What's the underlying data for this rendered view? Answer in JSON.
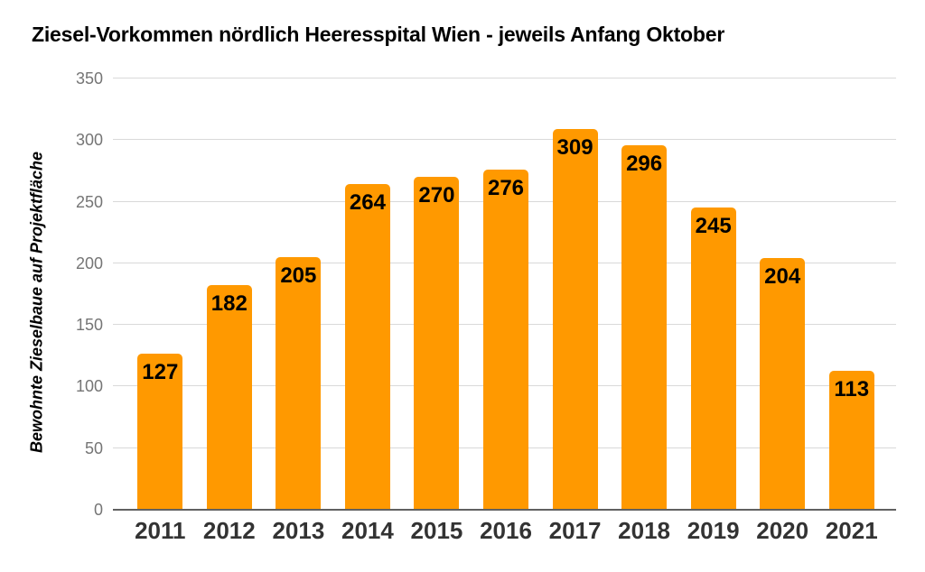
{
  "chart_data": {
    "type": "bar",
    "title": "Ziesel-Vorkommen nördlich Heeresspital Wien - jeweils Anfang Oktober",
    "ylabel": "Bewohnte Zieselbaue auf Projektfläche",
    "xlabel": "",
    "categories": [
      "2011",
      "2012",
      "2013",
      "2014",
      "2015",
      "2016",
      "2017",
      "2018",
      "2019",
      "2020",
      "2021"
    ],
    "values": [
      127,
      182,
      205,
      264,
      270,
      276,
      309,
      296,
      245,
      204,
      113
    ],
    "ylim": [
      0,
      350
    ],
    "yticks": [
      0,
      50,
      100,
      150,
      200,
      250,
      300,
      350
    ],
    "grid": "horizontal",
    "legend": "none",
    "colors": {
      "bar": "#ff9900",
      "bar_value_label": "#000000",
      "ytick_text": "#757575",
      "xtick_text": "#333333",
      "gridline": "#d9d9d9",
      "axis_line": "#616161",
      "title_text": "#000000",
      "background": "#ffffff"
    }
  }
}
